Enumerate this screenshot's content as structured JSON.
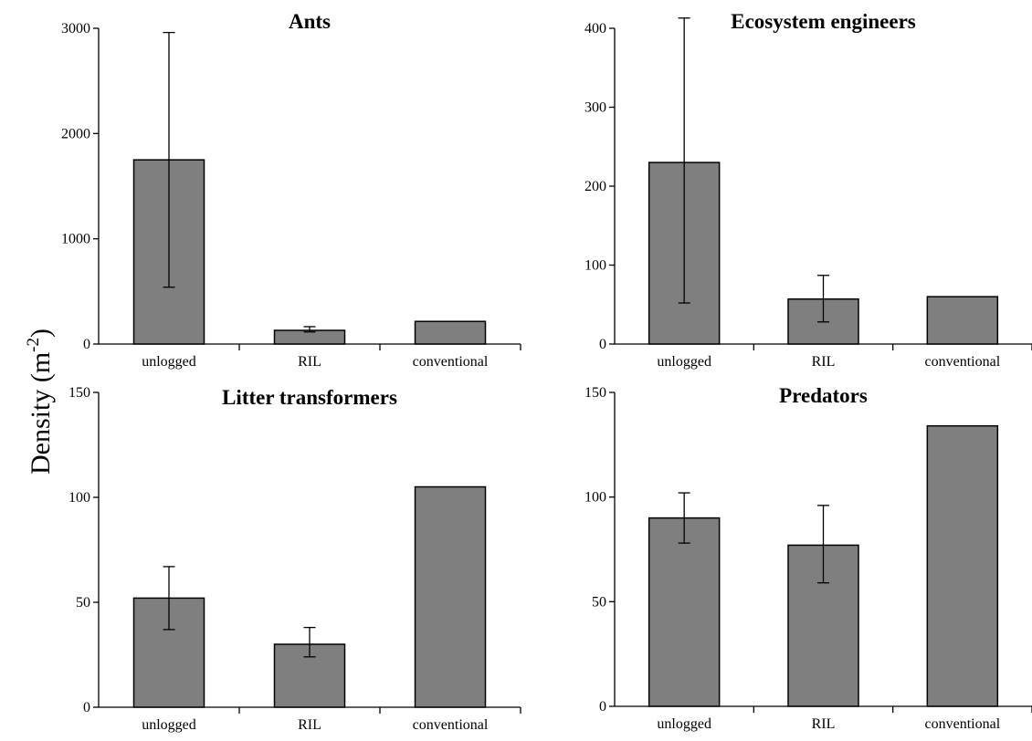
{
  "figure": {
    "ylabel": "Density (m",
    "ylabel_sup": "-2",
    "ylabel_close": ")"
  },
  "chart_data": [
    {
      "type": "bar",
      "title": "Ants",
      "categories": [
        "unlogged",
        "RIL",
        "conventional"
      ],
      "values": [
        1750,
        130,
        215
      ],
      "error_low": [
        540,
        115,
        null
      ],
      "error_high": [
        2960,
        165,
        null
      ],
      "yticks": [
        0,
        1000,
        2000,
        3000
      ],
      "ylim": [
        0,
        3000
      ],
      "bar_color": "#7f7f7f"
    },
    {
      "type": "bar",
      "title": "Ecosystem engineers",
      "categories": [
        "unlogged",
        "RIL",
        "conventional"
      ],
      "values": [
        230,
        57,
        60
      ],
      "error_low": [
        52,
        28,
        null
      ],
      "error_high": [
        413,
        87,
        null
      ],
      "yticks": [
        0,
        100,
        200,
        300,
        400
      ],
      "ylim": [
        0,
        400
      ],
      "bar_color": "#7f7f7f"
    },
    {
      "type": "bar",
      "title": "Litter transformers",
      "categories": [
        "unlogged",
        "RIL",
        "conventional"
      ],
      "values": [
        52,
        30,
        105
      ],
      "error_low": [
        37,
        24,
        null
      ],
      "error_high": [
        67,
        38,
        null
      ],
      "yticks": [
        0,
        50,
        100,
        150
      ],
      "ylim": [
        0,
        150
      ],
      "bar_color": "#7f7f7f"
    },
    {
      "type": "bar",
      "title": "Predators",
      "categories": [
        "unlogged",
        "RIL",
        "conventional"
      ],
      "values": [
        90,
        77,
        134
      ],
      "error_low": [
        78,
        59,
        null
      ],
      "error_high": [
        102,
        96,
        null
      ],
      "yticks": [
        0,
        50,
        100,
        150
      ],
      "ylim": [
        0,
        150
      ],
      "bar_color": "#7f7f7f"
    }
  ]
}
